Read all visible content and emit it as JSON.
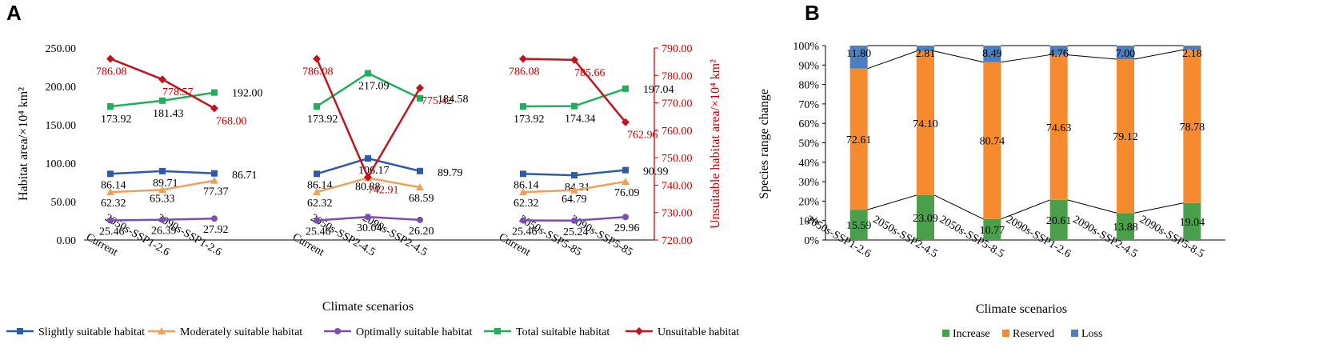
{
  "panel_labels": {
    "a": "A",
    "b": "B"
  },
  "chart_data": [
    {
      "type": "line",
      "panel": "A",
      "xlabel": "Climate scenarios",
      "ylabel_left": "Habitat area/×10⁴ km²",
      "ylabel_right": "Unsuitable habitat area/×10⁴ km²",
      "ylim_left": [
        0,
        250
      ],
      "ylim_right": [
        720,
        790
      ],
      "left_ticks": [
        "0.00",
        "50.00",
        "100.00",
        "150.00",
        "200.00",
        "250.00"
      ],
      "right_ticks": [
        "720.00",
        "730.00",
        "740.00",
        "750.00",
        "760.00",
        "770.00",
        "780.00",
        "790.00"
      ],
      "groups": [
        {
          "categories": [
            "Current",
            "2050s-SSP1-2.6",
            "2090s-SSP1-2.6"
          ]
        },
        {
          "categories": [
            "Current",
            "2050s-SSP2-4.5",
            "2090s-SSP2-4.5"
          ]
        },
        {
          "categories": [
            "Current",
            "2050s-SSP5-85",
            "2090s-SSP5-85"
          ]
        }
      ],
      "series": [
        {
          "name": "Slightly suitable habitat",
          "color": "#2e5aa8",
          "marker": "square",
          "axis": "left",
          "values": [
            [
              86.14,
              89.71,
              86.71
            ],
            [
              86.14,
              106.17,
              89.79
            ],
            [
              86.14,
              84.31,
              90.99
            ]
          ],
          "labels": [
            [
              "86.14",
              "89.71",
              "86.71"
            ],
            [
              "86.14",
              "106.17",
              "89.79"
            ],
            [
              "86.14",
              "84.31",
              "90.99"
            ]
          ]
        },
        {
          "name": "Moderately suitable habitat",
          "color": "#f0a05a",
          "marker": "triangle",
          "axis": "left",
          "values": [
            [
              62.32,
              65.33,
              77.37
            ],
            [
              62.32,
              80.88,
              68.59
            ],
            [
              62.32,
              64.79,
              76.09
            ]
          ],
          "labels": [
            [
              "62.32",
              "65.33",
              "77.37"
            ],
            [
              "62.32",
              "80.88",
              "68.59"
            ],
            [
              "62.32",
              "64.79",
              "76.09"
            ]
          ]
        },
        {
          "name": "Optimally suitable habitat",
          "color": "#7a4fb0",
          "marker": "circle",
          "axis": "left",
          "values": [
            [
              25.46,
              26.39,
              27.92
            ],
            [
              25.46,
              30.04,
              26.2
            ],
            [
              25.46,
              25.24,
              29.96
            ]
          ],
          "labels": [
            [
              "25.46",
              "26.39",
              "27.92"
            ],
            [
              "25.46",
              "30.04",
              "26.20"
            ],
            [
              "25.46",
              "25.24",
              "29.96"
            ]
          ]
        },
        {
          "name": "Total suitable habitat",
          "color": "#1fae5a",
          "marker": "square",
          "axis": "left",
          "values": [
            [
              173.92,
              181.43,
              192.0
            ],
            [
              173.92,
              217.09,
              184.58
            ],
            [
              173.92,
              174.34,
              197.04
            ]
          ],
          "labels": [
            [
              "173.92",
              "181.43",
              "192.00"
            ],
            [
              "173.92",
              "217.09",
              "184.58"
            ],
            [
              "173.92",
              "174.34",
              "197.04"
            ]
          ]
        },
        {
          "name": "Unsuitable habitat",
          "color": "#c0141c",
          "marker": "diamond",
          "axis": "right",
          "values": [
            [
              786.08,
              778.57,
              768.0
            ],
            [
              786.08,
              742.91,
              775.42
            ],
            [
              786.08,
              785.66,
              762.96
            ]
          ],
          "labels": [
            [
              "786.08",
              "778.57",
              "768.00"
            ],
            [
              "786.08",
              "742.91",
              "775.42"
            ],
            [
              "786.08",
              "785.66",
              "762.96"
            ]
          ]
        }
      ]
    },
    {
      "type": "bar",
      "panel": "B",
      "stacked": true,
      "percent": true,
      "xlabel": "Climate scenarios",
      "ylabel": "Species range change",
      "ylim": [
        0,
        100
      ],
      "y_ticks": [
        "0%",
        "10%",
        "20%",
        "30%",
        "40%",
        "50%",
        "60%",
        "70%",
        "80%",
        "90%",
        "100%"
      ],
      "categories": [
        "2050s-SSP1-2.6",
        "2050s-SSP2-4.5",
        "2050s-SSP5-8.5",
        "2090s-SSP1-2.6",
        "2090s-SSP2-4.5",
        "2090s-SSP5-8.5"
      ],
      "series": [
        {
          "name": "Increase",
          "color": "#4aa04a",
          "values": [
            15.59,
            23.09,
            10.77,
            20.61,
            13.88,
            19.04
          ],
          "labels": [
            "15.59",
            "23.09",
            "10.77",
            "20.61",
            "13.88",
            "19.04"
          ]
        },
        {
          "name": "Reserved",
          "color": "#f58a2e",
          "values": [
            72.61,
            74.1,
            80.74,
            74.63,
            79.12,
            78.78
          ],
          "labels": [
            "72.61",
            "74.10",
            "80.74",
            "74.63",
            "79.12",
            "78.78"
          ]
        },
        {
          "name": "Loss",
          "color": "#4a80bf",
          "values": [
            11.8,
            2.81,
            8.49,
            4.76,
            7.0,
            2.18
          ],
          "labels": [
            "11.80",
            "2.81",
            "8.49",
            "4.76",
            "7.00",
            "2.18"
          ]
        }
      ]
    }
  ]
}
